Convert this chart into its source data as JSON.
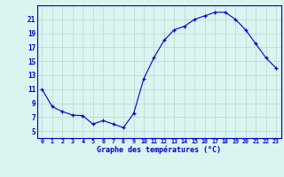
{
  "hours": [
    0,
    1,
    2,
    3,
    4,
    5,
    6,
    7,
    8,
    9,
    10,
    11,
    12,
    13,
    14,
    15,
    16,
    17,
    18,
    19,
    20,
    21,
    22,
    23
  ],
  "temps": [
    11.0,
    8.5,
    7.8,
    7.3,
    7.2,
    6.0,
    6.5,
    6.0,
    5.5,
    7.5,
    12.5,
    15.5,
    18.0,
    19.5,
    20.0,
    21.0,
    21.5,
    22.0,
    22.0,
    21.0,
    19.5,
    17.5,
    15.5,
    14.0
  ],
  "bg_color": "#d8f5f0",
  "line_color": "#0000cc",
  "marker_color": "#0000cc",
  "grid_color": "#b8d4d0",
  "axis_label_color": "#0000cc",
  "tick_color": "#0000cc",
  "xlabel": "Graphe des températures (°C)",
  "ylim": [
    4,
    23
  ],
  "xlim": [
    -0.5,
    23.5
  ],
  "yticks": [
    5,
    7,
    9,
    11,
    13,
    15,
    17,
    19,
    21
  ],
  "xticks": [
    0,
    1,
    2,
    3,
    4,
    5,
    6,
    7,
    8,
    9,
    10,
    11,
    12,
    13,
    14,
    15,
    16,
    17,
    18,
    19,
    20,
    21,
    22,
    23
  ]
}
